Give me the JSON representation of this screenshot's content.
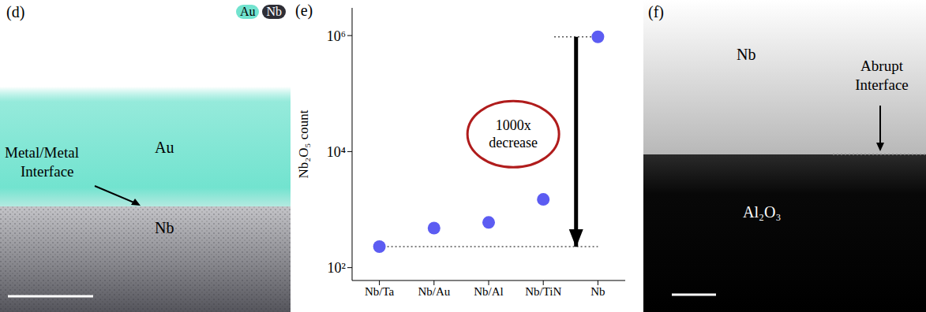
{
  "panel_d": {
    "label": "(d)",
    "legend": [
      {
        "name": "Au",
        "color": "#72e3cf"
      },
      {
        "name": "Nb",
        "color": "#2e2e36"
      }
    ],
    "regions": [
      "Au",
      "Nb"
    ],
    "annotation": "Metal/Metal Interface"
  },
  "chart_data": {
    "type": "scatter",
    "panel": "(e)",
    "y_label": "Nb₂O₅ count",
    "categories": [
      "Nb/Ta",
      "Nb/Au",
      "Nb/Al",
      "Nb/TiN",
      "Nb"
    ],
    "values": [
      230,
      480,
      600,
      1500,
      950000
    ],
    "color": "#5c5cf2",
    "marker": "circle",
    "log": "y",
    "ylim": [
      60,
      3000000
    ],
    "yticks": [
      {
        "value": 100,
        "label": "10²"
      },
      {
        "value": 10000,
        "label": "10⁴"
      },
      {
        "value": 1000000,
        "label": "10⁶"
      }
    ],
    "grid": false,
    "annotations": [
      {
        "text": "1000x decrease"
      }
    ]
  },
  "panel_f": {
    "label": "(f)",
    "regions": [
      "Nb",
      "Al₂O₃"
    ],
    "annotation": "Abrupt Interface"
  }
}
